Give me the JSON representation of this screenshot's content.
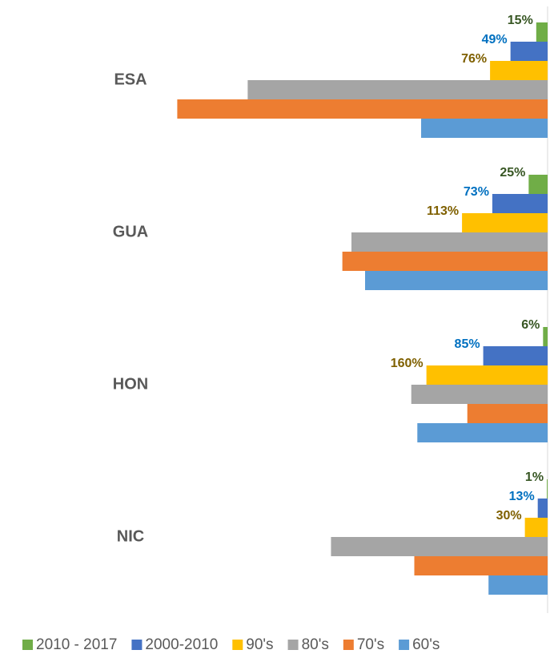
{
  "chart_data": {
    "type": "hbar",
    "categories": [
      "ESA",
      "GUA",
      "HON",
      "NIC"
    ],
    "xlim": [
      0,
      500
    ],
    "series": [
      {
        "name": "2010 - 2017",
        "color": "#70ad47",
        "label_color": "#375623",
        "values": [
          15,
          25,
          6,
          1
        ],
        "value_labels": [
          "15%",
          "25%",
          "6%",
          "1%"
        ]
      },
      {
        "name": "2000-2010",
        "color": "#4472c4",
        "label_color": "#0070c0",
        "values": [
          49,
          73,
          85,
          13
        ],
        "value_labels": [
          "49%",
          "73%",
          "85%",
          "13%"
        ]
      },
      {
        "name": "90's",
        "color": "#ffc000",
        "label_color": "#7f6000",
        "values": [
          76,
          113,
          160,
          30
        ],
        "value_labels": [
          "76%",
          "113%",
          "160%",
          "30%"
        ]
      },
      {
        "name": "80's",
        "color": "#a5a5a5",
        "values": [
          396,
          259,
          180,
          286
        ]
      },
      {
        "name": "70's",
        "color": "#ed7d31",
        "values": [
          489,
          271,
          106,
          176
        ]
      },
      {
        "name": "60's",
        "color": "#5b9bd5",
        "values": [
          167,
          241,
          172,
          78
        ]
      }
    ]
  }
}
